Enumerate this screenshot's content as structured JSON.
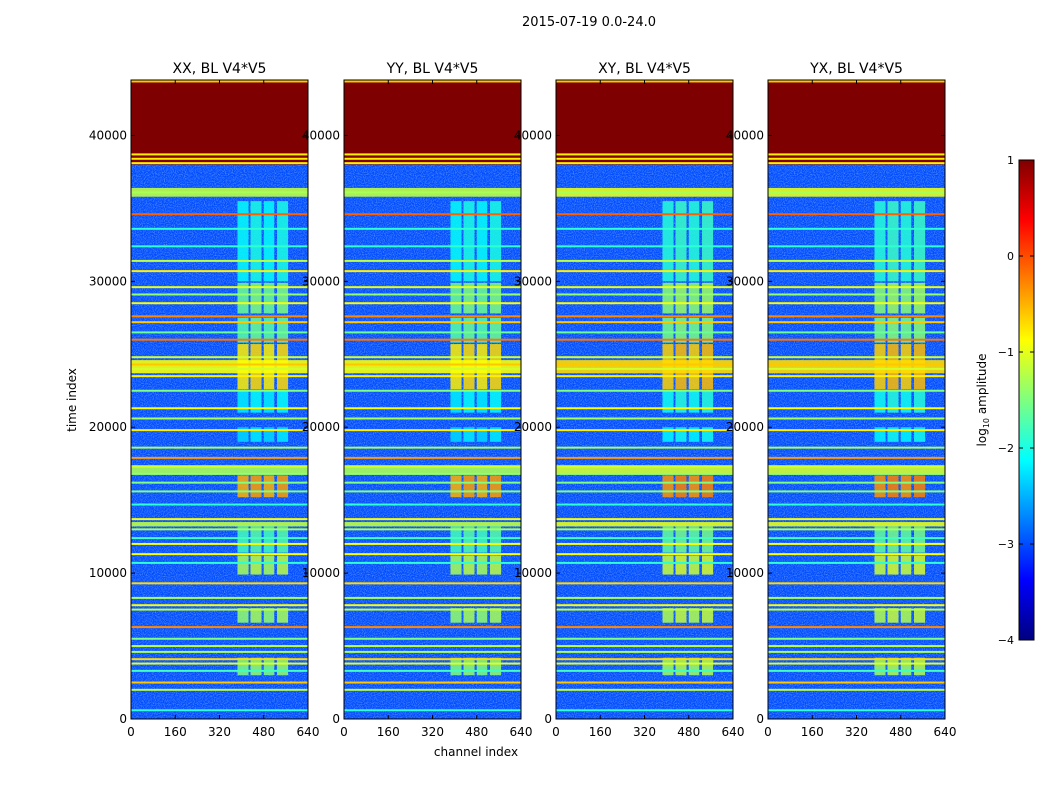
{
  "chart_data": {
    "type": "heatmap",
    "title": "2015-07-19 0.0-24.0",
    "xlabel": "channel index",
    "ylabel": "time index",
    "xlim": [
      0,
      640
    ],
    "ylim": [
      0,
      43800
    ],
    "xticks": [
      0,
      160,
      320,
      480,
      640
    ],
    "yticks": [
      0,
      10000,
      20000,
      30000,
      40000
    ],
    "panels": [
      {
        "title": "XX, BL V4*V5",
        "pol": "XX"
      },
      {
        "title": "YY, BL V4*V5",
        "pol": "YY"
      },
      {
        "title": "XY, BL V4*V5",
        "pol": "XY"
      },
      {
        "title": "YX, BL V4*V5",
        "pol": "YX"
      }
    ],
    "colorbar": {
      "label": "log10 amplitude",
      "label_text": "log",
      "label_sub": "10",
      "label_suffix": " amplitude",
      "range": [
        -4,
        1
      ],
      "ticks": [
        1,
        0,
        -1,
        -2,
        -3,
        -4
      ],
      "tick_labels": [
        "1",
        "0",
        "−1",
        "−2",
        "−3",
        "−4"
      ],
      "colormap": "jet"
    },
    "colormap_stops": [
      "#00007f",
      "#0000ff",
      "#007fff",
      "#00ffff",
      "#7fff7f",
      "#ffff00",
      "#ff7f00",
      "#ff0000",
      "#7f0000"
    ],
    "saturated_block": {
      "from": 38000,
      "to": 43800,
      "value": 1
    },
    "horizontal_stripes": [
      {
        "y": 43700,
        "v": -0.6
      },
      {
        "y": 38700,
        "v": -0.8
      },
      {
        "y": 38400,
        "v": -0.8
      },
      {
        "y": 38100,
        "v": -0.8
      },
      {
        "y": 36100,
        "v": -1.3
      },
      {
        "y": 34600,
        "v": -0.1
      },
      {
        "y": 33600,
        "v": -1.9
      },
      {
        "y": 32400,
        "v": -1.9
      },
      {
        "y": 31400,
        "v": -1.2
      },
      {
        "y": 30700,
        "v": -0.8
      },
      {
        "y": 29600,
        "v": -1.0
      },
      {
        "y": 29100,
        "v": -1.4
      },
      {
        "y": 28500,
        "v": -0.9
      },
      {
        "y": 27600,
        "v": -0.3
      },
      {
        "y": 27200,
        "v": -0.6
      },
      {
        "y": 26500,
        "v": -1.6
      },
      {
        "y": 26000,
        "v": -0.2
      },
      {
        "y": 24800,
        "v": -1.1
      },
      {
        "y": 24300,
        "v": -0.6
      },
      {
        "y": 24000,
        "v": -1.1
      },
      {
        "y": 23500,
        "v": -0.8
      },
      {
        "y": 22500,
        "v": -1.5
      },
      {
        "y": 21300,
        "v": -0.9
      },
      {
        "y": 20600,
        "v": -1.3
      },
      {
        "y": 19800,
        "v": -0.8
      },
      {
        "y": 18600,
        "v": -1.3
      },
      {
        "y": 17900,
        "v": -0.4
      },
      {
        "y": 17300,
        "v": -1.1
      },
      {
        "y": 16800,
        "v": -1.4
      },
      {
        "y": 16200,
        "v": -1.5
      },
      {
        "y": 15600,
        "v": -1.5
      },
      {
        "y": 14700,
        "v": -1.9
      },
      {
        "y": 13700,
        "v": -0.9
      },
      {
        "y": 13000,
        "v": -1.3
      },
      {
        "y": 12400,
        "v": -1.8
      },
      {
        "y": 12000,
        "v": -0.9
      },
      {
        "y": 11300,
        "v": -0.9
      },
      {
        "y": 10700,
        "v": -1.9
      },
      {
        "y": 9300,
        "v": -0.7
      },
      {
        "y": 8300,
        "v": -1.3
      },
      {
        "y": 7800,
        "v": -0.9
      },
      {
        "y": 7500,
        "v": -1.2
      },
      {
        "y": 6300,
        "v": -0.3
      },
      {
        "y": 5500,
        "v": -1.5
      },
      {
        "y": 5000,
        "v": -1.2
      },
      {
        "y": 4600,
        "v": -1.3
      },
      {
        "y": 4100,
        "v": -0.7
      },
      {
        "y": 3800,
        "v": -1.0
      },
      {
        "y": 3300,
        "v": -1.8
      },
      {
        "y": 2500,
        "v": -0.6
      },
      {
        "y": 2000,
        "v": -1.2
      },
      {
        "y": 600,
        "v": -1.9
      }
    ],
    "wide_bands": [
      {
        "from": 35800,
        "to": 36400,
        "v": -1.2
      },
      {
        "from": 16800,
        "to": 17400,
        "v": -1.3
      },
      {
        "from": 13200,
        "to": 13500,
        "v": -1.2
      },
      {
        "from": 23700,
        "to": 24600,
        "v": -0.9
      }
    ],
    "rfi_columns": [
      {
        "x0": 385,
        "x1": 425
      },
      {
        "x0": 432,
        "x1": 472
      },
      {
        "x0": 480,
        "x1": 518
      },
      {
        "x0": 528,
        "x1": 568
      }
    ],
    "rfi_segments": [
      {
        "from": 3000,
        "to": 4200,
        "v": -1.5
      },
      {
        "from": 6600,
        "to": 7600,
        "v": -1.4
      },
      {
        "from": 9900,
        "to": 11200,
        "v": -1.3
      },
      {
        "from": 11400,
        "to": 13200,
        "v": -1.8
      },
      {
        "from": 15200,
        "to": 16700,
        "v": -0.5
      },
      {
        "from": 19000,
        "to": 20000,
        "v": -2.3
      },
      {
        "from": 21000,
        "to": 22500,
        "v": -2.2
      },
      {
        "from": 22600,
        "to": 25700,
        "v": -0.8
      },
      {
        "from": 25800,
        "to": 27500,
        "v": -1.7
      },
      {
        "from": 27800,
        "to": 29900,
        "v": -1.6
      },
      {
        "from": 30000,
        "to": 35500,
        "v": -2.1
      }
    ],
    "background_level": -3.0
  }
}
